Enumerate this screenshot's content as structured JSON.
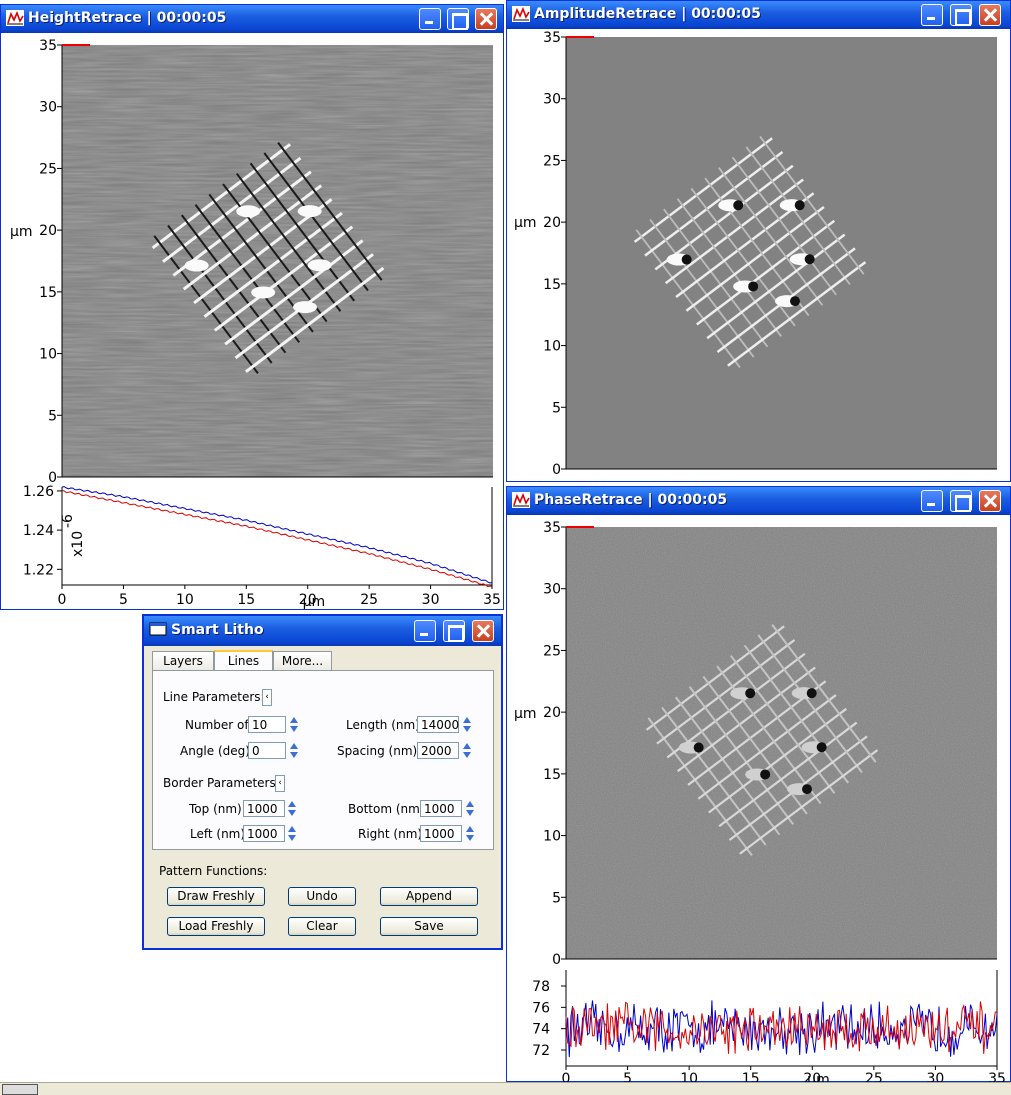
{
  "windows": {
    "height": {
      "title": "HeightRetrace | 00:00:05"
    },
    "amplitude": {
      "title": "AmplitudeRetrace | 00:00:05"
    },
    "phase": {
      "title": "PhaseRetrace | 00:00:05"
    },
    "litho": {
      "title": "Smart Litho"
    }
  },
  "axes": {
    "y_ticks": [
      "35",
      "30",
      "25",
      "20",
      "15",
      "10",
      "5",
      "0"
    ],
    "y_unit": "µm",
    "x_ticks": [
      "0",
      "5",
      "10",
      "15",
      "20",
      "25",
      "30",
      "35"
    ],
    "x_unit": "µm"
  },
  "chart_data": [
    {
      "type": "line",
      "panel": "height profile",
      "x": [
        0,
        5,
        10,
        15,
        20,
        25,
        30,
        35
      ],
      "series": [
        {
          "color": "#0000cc",
          "values": [
            1.262,
            1.257,
            1.251,
            1.245,
            1.238,
            1.231,
            1.223,
            1.213
          ]
        },
        {
          "color": "#dd0000",
          "values": [
            1.26,
            1.254,
            1.248,
            1.242,
            1.235,
            1.228,
            1.22,
            1.211
          ]
        }
      ],
      "y_ticks": [
        "1.26",
        "1.24",
        "1.22"
      ],
      "y_scale_label": "x10",
      "y_scale_exp": "-6",
      "ylim": [
        1.212,
        1.262
      ],
      "xlim": [
        0,
        35
      ]
    },
    {
      "type": "line",
      "panel": "phase profile",
      "x_range": [
        0,
        35
      ],
      "series": [
        {
          "color": "#0000cc",
          "mean": 74,
          "noise": 2
        },
        {
          "color": "#dd0000",
          "mean": 74,
          "noise": 2
        }
      ],
      "y_ticks": [
        "78",
        "76",
        "74",
        "72"
      ],
      "ylim": [
        70.5,
        79.5
      ],
      "xlim": [
        0,
        35
      ]
    }
  ],
  "litho": {
    "tabs": [
      "Layers",
      "Lines",
      "More..."
    ],
    "active_tab": "Lines",
    "line_params_label": "Line Parameters:",
    "border_params_label": "Border Parameters:",
    "collapse_glyph": "‹",
    "fields": {
      "number_label": "Number of",
      "number_value": "10",
      "length_label": "Length (nm)",
      "length_value": "14000",
      "angle_label": "Angle (deg)",
      "angle_value": "0",
      "spacing_label": "Spacing (nm)",
      "spacing_value": "2000",
      "top_label": "Top (nm)",
      "top_value": "1000",
      "bottom_label": "Bottom (nm)",
      "bottom_value": "1000",
      "left_label": "Left (nm)",
      "left_value": "1000",
      "right_label": "Right (nm)",
      "right_value": "1000"
    },
    "pattern_label": "Pattern Functions:",
    "buttons": {
      "draw_freshly": "Draw Freshly",
      "undo": "Undo",
      "append": "Append",
      "load_freshly": "Load Freshly",
      "clear": "Clear",
      "save": "Save"
    }
  }
}
